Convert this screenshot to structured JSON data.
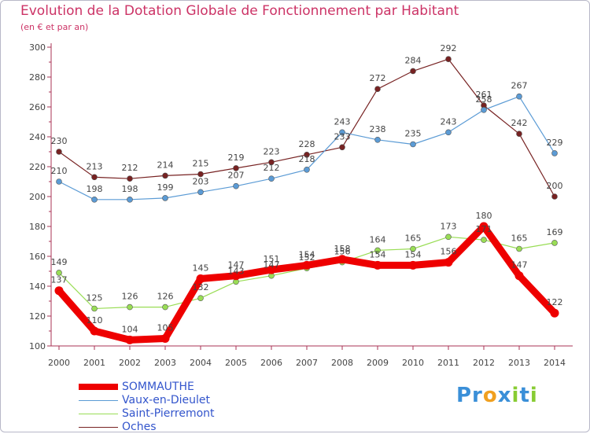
{
  "title": "Evolution de la Dotation Globale de Fonctionnement par Habitant",
  "subtitle": "(en € et par an)",
  "logo": {
    "p": "Pr",
    "o": "o",
    "x": "x",
    "i": "i",
    "t": "t",
    "i2": "i"
  },
  "chart_data": {
    "type": "line",
    "title": "Evolution de la Dotation Globale de Fonctionnement par Habitant",
    "subtitle": "(en € et par an)",
    "xlabel": "",
    "ylabel": "",
    "ylim": [
      100,
      300
    ],
    "yticks": [
      100,
      120,
      140,
      160,
      180,
      200,
      220,
      240,
      260,
      280,
      300
    ],
    "grid": false,
    "legend_position": "bottom-left",
    "categories": [
      "2000",
      "2001",
      "2002",
      "2003",
      "2004",
      "2005",
      "2006",
      "2007",
      "2008",
      "2009",
      "2010",
      "2011",
      "2012",
      "2013",
      "2014"
    ],
    "series": [
      {
        "name": "SOMMAUTHE",
        "color": "#ee0000",
        "values": [
          137,
          110,
          104,
          105,
          145,
          147,
          151,
          154,
          158,
          154,
          154,
          156,
          180,
          147,
          122
        ]
      },
      {
        "name": "Vaux-en-Dieulet",
        "color": "#5b9bd5",
        "values": [
          210,
          198,
          198,
          199,
          203,
          207,
          212,
          218,
          243,
          238,
          235,
          243,
          258,
          267,
          229
        ]
      },
      {
        "name": "Saint-Pierremont",
        "color": "#99dd55",
        "values": [
          149,
          125,
          126,
          126,
          132,
          143,
          147,
          152,
          156,
          164,
          165,
          173,
          171,
          165,
          169
        ]
      },
      {
        "name": "Oches",
        "color": "#772222",
        "values": [
          230,
          213,
          212,
          214,
          215,
          219,
          223,
          228,
          233,
          272,
          284,
          292,
          261,
          242,
          200
        ]
      }
    ]
  }
}
